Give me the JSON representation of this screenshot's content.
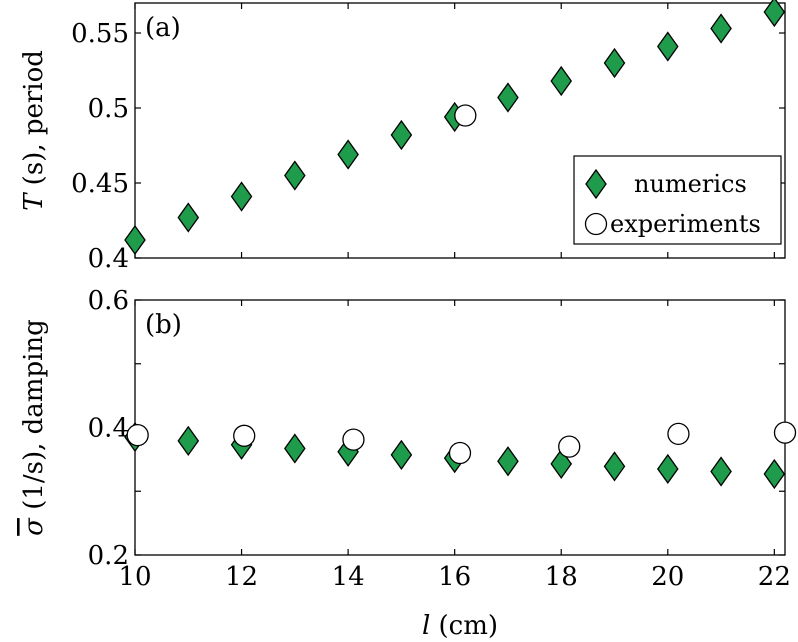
{
  "chart_data": [
    {
      "type": "scatter",
      "panel_label": "(a)",
      "ylabel": "T (s), period",
      "ylabel_var": "T",
      "ylabel_rest": " (s), period",
      "xlabel": "",
      "xlim": [
        10,
        22.2
      ],
      "ylim": [
        0.4,
        0.57
      ],
      "yticks": [
        0.4,
        0.45,
        0.5,
        0.55
      ],
      "ytick_labels": [
        "0.4",
        "0.45",
        "0.5",
        "0.55"
      ],
      "xticks": [
        10,
        12,
        14,
        16,
        18,
        20,
        22
      ],
      "show_xtick_labels": false,
      "grid": false,
      "legend": "bottom-right",
      "series": [
        {
          "name": "numerics",
          "marker": "diamond",
          "color": "#1e9b4b",
          "x": [
            10,
            11,
            12,
            13,
            14,
            15,
            16,
            17,
            18,
            19,
            20,
            21,
            22
          ],
          "y": [
            0.412,
            0.427,
            0.441,
            0.455,
            0.469,
            0.482,
            0.494,
            0.507,
            0.518,
            0.53,
            0.541,
            0.553,
            0.564
          ]
        },
        {
          "name": "experiments",
          "marker": "circle",
          "color": "#ffffff",
          "x": [
            16.2
          ],
          "y": [
            0.495
          ]
        }
      ]
    },
    {
      "type": "scatter",
      "panel_label": "(b)",
      "ylabel": "σ̄ (1/s), damping",
      "ylabel_var": "σ",
      "ylabel_rest": " (1/s), damping",
      "xlabel": "l (cm)",
      "xlabel_var": "l",
      "xlabel_rest": " (cm)",
      "xlim": [
        10,
        22.2
      ],
      "ylim": [
        0.2,
        0.6
      ],
      "yticks": [
        0.2,
        0.4,
        0.6
      ],
      "ytick_labels": [
        "0.2",
        "0.4",
        "0.6"
      ],
      "yminor": [
        0.3,
        0.5
      ],
      "xticks": [
        10,
        12,
        14,
        16,
        18,
        20,
        22
      ],
      "xtick_labels": [
        "10",
        "12",
        "14",
        "16",
        "18",
        "20",
        "22"
      ],
      "show_xtick_labels": true,
      "grid": false,
      "series": [
        {
          "name": "numerics",
          "marker": "diamond",
          "color": "#1e9b4b",
          "x": [
            10,
            11,
            12,
            13,
            14,
            15,
            16,
            17,
            18,
            19,
            20,
            21,
            22
          ],
          "y": [
            0.385,
            0.379,
            0.373,
            0.367,
            0.362,
            0.357,
            0.352,
            0.347,
            0.343,
            0.339,
            0.335,
            0.331,
            0.327
          ]
        },
        {
          "name": "experiments",
          "marker": "circle",
          "color": "#ffffff",
          "x": [
            10.05,
            12.05,
            14.1,
            16.1,
            18.15,
            20.2,
            22.2
          ],
          "y": [
            0.388,
            0.387,
            0.381,
            0.36,
            0.37,
            0.39,
            0.392
          ]
        }
      ]
    }
  ]
}
